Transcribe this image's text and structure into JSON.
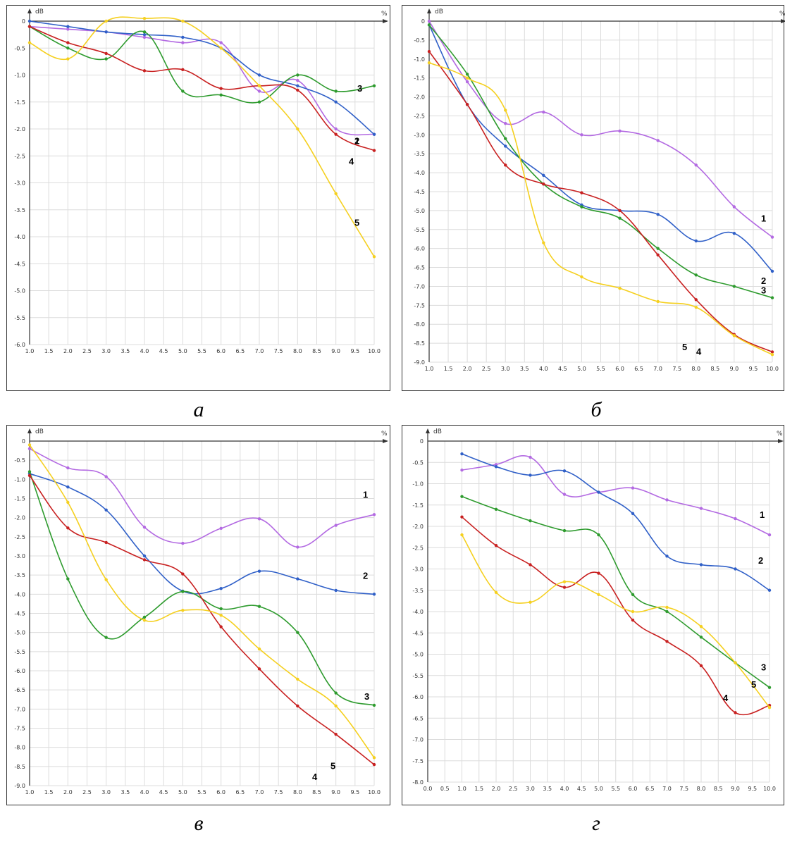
{
  "chart_data": [
    {
      "type": "line",
      "caption": "а",
      "ylabel": "dB",
      "xlabel": "%",
      "xlim": [
        1.0,
        10.0
      ],
      "ylim": [
        -6.0,
        0
      ],
      "xticks": [
        "1.0",
        "1.5",
        "2.0",
        "2.5",
        "3.0",
        "3.5",
        "4.0",
        "4.5",
        "5.0",
        "5.5",
        "6.0",
        "6.5",
        "7.0",
        "7.5",
        "8.0",
        "8.5",
        "9.0",
        "9.5",
        "10.0"
      ],
      "yticks": [
        "0",
        "-0.5",
        "-1.0",
        "-1.5",
        "-2.0",
        "-2.5",
        "-3.0",
        "-3.5",
        "-4.0",
        "-4.5",
        "-5.0",
        "-5.5",
        "-6.0"
      ],
      "series": [
        {
          "name": "1",
          "color": "#b36ae2",
          "x": [
            1,
            2,
            3,
            4,
            5,
            6,
            7,
            8,
            9,
            10
          ],
          "values": [
            -0.1,
            -0.15,
            -0.2,
            -0.3,
            -0.4,
            -0.4,
            -1.3,
            -1.1,
            -2.0,
            -2.1
          ]
        },
        {
          "name": "2",
          "color": "#3060c8",
          "x": [
            1,
            2,
            3,
            4,
            5,
            6,
            7,
            8,
            9,
            10
          ],
          "values": [
            0,
            -0.1,
            -0.2,
            -0.25,
            -0.3,
            -0.5,
            -1.0,
            -1.2,
            -1.5,
            -2.1
          ]
        },
        {
          "name": "3",
          "color": "#2e9b2e",
          "x": [
            1,
            2,
            3,
            4,
            5,
            6,
            7,
            8,
            9,
            10
          ],
          "values": [
            -0.1,
            -0.5,
            -0.7,
            -0.2,
            -1.3,
            -1.37,
            -1.5,
            -1.0,
            -1.3,
            -1.2
          ]
        },
        {
          "name": "4",
          "color": "#c82020",
          "x": [
            1,
            2,
            3,
            4,
            5,
            6,
            7,
            8,
            9,
            10
          ],
          "values": [
            -0.1,
            -0.4,
            -0.6,
            -0.92,
            -0.9,
            -1.25,
            -1.2,
            -1.28,
            -2.1,
            -2.4
          ]
        },
        {
          "name": "5",
          "color": "#f5d020",
          "x": [
            1,
            2,
            3,
            4,
            5,
            6,
            7,
            8,
            9,
            10
          ],
          "values": [
            -0.4,
            -0.7,
            0,
            0.05,
            0,
            -0.5,
            -1.2,
            -2.0,
            -3.2,
            -4.37
          ]
        }
      ]
    },
    {
      "type": "line",
      "caption": "б",
      "ylabel": "dB",
      "xlabel": "%",
      "xlim": [
        1.0,
        10.0
      ],
      "ylim": [
        -9.0,
        0
      ],
      "xticks": [
        "1.0",
        "1.5",
        "2.0",
        "2.5",
        "3.0",
        "3.5",
        "4.0",
        "4.5",
        "5.0",
        "5.5",
        "6.0",
        "6.5",
        "7.0",
        "7.5",
        "8.0",
        "8.5",
        "9.0",
        "9.5",
        "10.0"
      ],
      "yticks": [
        "0",
        "-0.5",
        "-1.0",
        "-1.5",
        "-2.0",
        "-2.5",
        "-3.0",
        "-3.5",
        "-4.0",
        "-4.5",
        "-5.0",
        "-5.5",
        "-6.0",
        "-6.5",
        "-7.0",
        "-7.5",
        "-8.0",
        "-8.5",
        "-9.0"
      ],
      "series": [
        {
          "name": "1",
          "color": "#b36ae2",
          "x": [
            1,
            2,
            3,
            4,
            5,
            6,
            7,
            8,
            9,
            10
          ],
          "values": [
            0,
            -1.6,
            -2.7,
            -2.4,
            -3.0,
            -2.9,
            -3.15,
            -3.8,
            -4.9,
            -5.7
          ]
        },
        {
          "name": "2",
          "color": "#3060c8",
          "x": [
            1,
            2,
            3,
            4,
            5,
            6,
            7,
            8,
            9,
            10
          ],
          "values": [
            -0.1,
            -2.2,
            -3.3,
            -4.07,
            -4.85,
            -5.0,
            -5.1,
            -5.8,
            -5.6,
            -6.6
          ]
        },
        {
          "name": "3",
          "color": "#2e9b2e",
          "x": [
            1,
            2,
            3,
            4,
            5,
            6,
            7,
            8,
            9,
            10
          ],
          "values": [
            -0.1,
            -1.4,
            -3.1,
            -4.3,
            -4.9,
            -5.2,
            -6.0,
            -6.7,
            -7.0,
            -7.3
          ]
        },
        {
          "name": "4",
          "color": "#c82020",
          "x": [
            1,
            2,
            3,
            4,
            5,
            6,
            7,
            8,
            9,
            10
          ],
          "values": [
            -0.8,
            -2.2,
            -3.8,
            -4.3,
            -4.53,
            -5.0,
            -6.17,
            -7.35,
            -8.27,
            -8.73
          ]
        },
        {
          "name": "5",
          "color": "#f5d020",
          "x": [
            1,
            2,
            3,
            4,
            5,
            6,
            7,
            8,
            9,
            10
          ],
          "values": [
            -1.1,
            -1.5,
            -2.35,
            -5.85,
            -6.75,
            -7.05,
            -7.4,
            -7.55,
            -8.3,
            -8.8
          ]
        }
      ]
    },
    {
      "type": "line",
      "caption": "в",
      "ylabel": "dB",
      "xlabel": "%",
      "xlim": [
        1.0,
        10.0
      ],
      "ylim": [
        -9.0,
        0
      ],
      "xticks": [
        "1.0",
        "1.5",
        "2.0",
        "2.5",
        "3.0",
        "3.5",
        "4.0",
        "4.5",
        "5.0",
        "5.5",
        "6.0",
        "6.5",
        "7.0",
        "7.5",
        "8.0",
        "8.5",
        "9.0",
        "9.5",
        "10.0"
      ],
      "yticks": [
        "0",
        "-0.5",
        "-1.0",
        "-1.5",
        "-2.0",
        "-2.5",
        "-3.0",
        "-3.5",
        "-4.0",
        "-4.5",
        "-5.0",
        "-5.5",
        "-6.0",
        "-6.5",
        "-7.0",
        "-7.5",
        "-8.0",
        "-8.5",
        "-9.0"
      ],
      "series": [
        {
          "name": "1",
          "color": "#b36ae2",
          "x": [
            1,
            2,
            3,
            4,
            5,
            6,
            7,
            8,
            9,
            10
          ],
          "values": [
            -0.2,
            -0.7,
            -0.93,
            -2.25,
            -2.67,
            -2.28,
            -2.03,
            -2.77,
            -2.2,
            -1.92
          ]
        },
        {
          "name": "2",
          "color": "#3060c8",
          "x": [
            1,
            2,
            3,
            4,
            5,
            6,
            7,
            8,
            9,
            10
          ],
          "values": [
            -0.85,
            -1.2,
            -1.8,
            -3.0,
            -3.92,
            -3.85,
            -3.4,
            -3.6,
            -3.9,
            -4.0
          ]
        },
        {
          "name": "3",
          "color": "#2e9b2e",
          "x": [
            1,
            2,
            3,
            4,
            5,
            6,
            7,
            8,
            9,
            10
          ],
          "values": [
            -0.8,
            -3.6,
            -5.13,
            -4.6,
            -3.93,
            -4.38,
            -4.32,
            -5.0,
            -6.58,
            -6.9
          ]
        },
        {
          "name": "4",
          "color": "#c82020",
          "x": [
            1,
            2,
            3,
            4,
            5,
            6,
            7,
            8,
            9,
            10
          ],
          "values": [
            -0.9,
            -2.27,
            -2.65,
            -3.1,
            -3.47,
            -4.85,
            -5.95,
            -6.92,
            -7.66,
            -8.45
          ]
        },
        {
          "name": "5",
          "color": "#f5d020",
          "x": [
            1,
            2,
            3,
            4,
            5,
            6,
            7,
            8,
            9,
            10
          ],
          "values": [
            -0.1,
            -1.6,
            -3.62,
            -4.68,
            -4.42,
            -4.55,
            -5.43,
            -6.22,
            -6.92,
            -8.27
          ]
        }
      ]
    },
    {
      "type": "line",
      "caption": "г",
      "ylabel": "dB",
      "xlabel": "%",
      "xlim": [
        0.0,
        10.0
      ],
      "ylim": [
        -8.0,
        0
      ],
      "xticks": [
        "0.0",
        "0.5",
        "1.0",
        "1.5",
        "2.0",
        "2.5",
        "3.0",
        "3.5",
        "4.0",
        "4.5",
        "5.0",
        "5.5",
        "6.0",
        "6.5",
        "7.0",
        "7.5",
        "8.0",
        "8.5",
        "9.0",
        "9.5",
        "10.0"
      ],
      "yticks": [
        "0",
        "-0.5",
        "-1.0",
        "-1.5",
        "-2.0",
        "-2.5",
        "-3.0",
        "-3.5",
        "-4.0",
        "-4.5",
        "-5.0",
        "-5.5",
        "-6.0",
        "-6.5",
        "-7.0",
        "-7.5",
        "-8.0"
      ],
      "series": [
        {
          "name": "1",
          "color": "#b36ae2",
          "x": [
            1,
            2,
            3,
            4,
            5,
            6,
            7,
            8,
            9,
            10
          ],
          "values": [
            -0.68,
            -0.55,
            -0.38,
            -1.25,
            -1.2,
            -1.1,
            -1.38,
            -1.58,
            -1.82,
            -2.2
          ]
        },
        {
          "name": "2",
          "color": "#3060c8",
          "x": [
            1,
            2,
            3,
            4,
            5,
            6,
            7,
            8,
            9,
            10
          ],
          "values": [
            -0.3,
            -0.6,
            -0.8,
            -0.7,
            -1.2,
            -1.7,
            -2.7,
            -2.9,
            -3.0,
            -3.5
          ]
        },
        {
          "name": "3",
          "color": "#2e9b2e",
          "x": [
            1,
            2,
            3,
            4,
            5,
            6,
            7,
            8,
            9,
            10
          ],
          "values": [
            -1.3,
            -1.6,
            -1.87,
            -2.1,
            -2.2,
            -3.6,
            -4.0,
            -4.6,
            -5.2,
            -5.78
          ]
        },
        {
          "name": "4",
          "color": "#c82020",
          "x": [
            1,
            2,
            3,
            4,
            5,
            6,
            7,
            8,
            9,
            10
          ],
          "values": [
            -1.78,
            -2.45,
            -2.9,
            -3.43,
            -3.1,
            -4.2,
            -4.7,
            -5.27,
            -6.37,
            -6.2
          ]
        },
        {
          "name": "5",
          "color": "#f5d020",
          "x": [
            1,
            2,
            3,
            4,
            5,
            6,
            7,
            8,
            9,
            10
          ],
          "values": [
            -2.2,
            -3.55,
            -3.78,
            -3.3,
            -3.6,
            -4.0,
            -3.9,
            -4.35,
            -5.2,
            -6.25
          ]
        }
      ]
    }
  ]
}
